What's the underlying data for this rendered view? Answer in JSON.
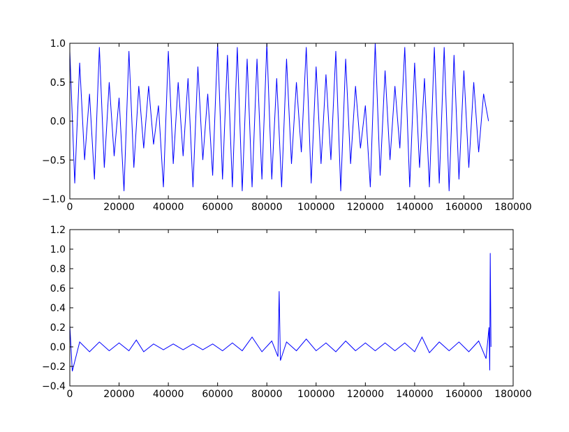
{
  "chart_data": [
    {
      "type": "line",
      "xlim": [
        0,
        180000
      ],
      "xticks": [
        0,
        20000,
        40000,
        60000,
        80000,
        100000,
        120000,
        140000,
        160000,
        180000
      ],
      "ylim": [
        -1,
        1
      ],
      "yticks": [
        {
          "value": -1,
          "label": "−1.0"
        },
        {
          "value": -0.5,
          "label": "−0.5"
        },
        {
          "value": 0,
          "label": "0.0"
        },
        0.5,
        {
          "value": 1,
          "label": "1.0"
        }
      ],
      "x": [
        0,
        2000,
        4000,
        6000,
        8000,
        10000,
        12000,
        14000,
        16000,
        18000,
        20000,
        22000,
        24000,
        26000,
        28000,
        30000,
        32000,
        34000,
        36000,
        38000,
        40000,
        42000,
        44000,
        46000,
        48000,
        50000,
        52000,
        54000,
        56000,
        58000,
        60000,
        62000,
        64000,
        66000,
        68000,
        70000,
        72000,
        74000,
        76000,
        78000,
        80000,
        82000,
        84000,
        86000,
        88000,
        90000,
        92000,
        94000,
        96000,
        98000,
        100000,
        102000,
        104000,
        106000,
        108000,
        110000,
        112000,
        114000,
        116000,
        118000,
        120000,
        122000,
        124000,
        126000,
        128000,
        130000,
        132000,
        134000,
        136000,
        138000,
        140000,
        142000,
        144000,
        146000,
        148000,
        150000,
        152000,
        154000,
        156000,
        158000,
        160000,
        162000,
        164000,
        166000,
        168000,
        170000
      ],
      "series": [
        {
          "color": "#0000ff",
          "values": [
            0.9,
            -0.8,
            0.75,
            -0.5,
            0.35,
            -0.75,
            0.95,
            -0.6,
            0.5,
            -0.45,
            0.3,
            -0.9,
            0.9,
            -0.6,
            0.45,
            -0.35,
            0.45,
            -0.3,
            0.2,
            -0.85,
            0.9,
            -0.55,
            0.5,
            -0.45,
            0.55,
            -0.85,
            0.7,
            -0.5,
            0.35,
            -0.7,
            1.0,
            -0.75,
            0.85,
            -0.85,
            0.95,
            -0.9,
            0.8,
            -0.85,
            0.8,
            -0.75,
            1.0,
            -0.75,
            0.55,
            -0.85,
            0.8,
            -0.55,
            0.5,
            -0.4,
            0.95,
            -0.8,
            0.7,
            -0.55,
            0.6,
            -0.5,
            0.9,
            -0.9,
            0.8,
            -0.55,
            0.45,
            -0.35,
            0.2,
            -0.85,
            1.0,
            -0.7,
            0.65,
            -0.5,
            0.45,
            -0.35,
            0.95,
            -0.85,
            0.75,
            -0.6,
            0.55,
            -0.85,
            0.95,
            -0.8,
            0.95,
            -0.9,
            0.85,
            -0.75,
            0.65,
            -0.6,
            0.5,
            -0.4,
            0.35,
            0.0
          ]
        }
      ]
    },
    {
      "type": "line",
      "xlim": [
        0,
        180000
      ],
      "xticks": [
        0,
        20000,
        40000,
        60000,
        80000,
        100000,
        120000,
        140000,
        160000,
        180000
      ],
      "ylim": [
        -0.4,
        1.2
      ],
      "yticks": [
        {
          "value": -0.4,
          "label": "−0.4"
        },
        {
          "value": -0.2,
          "label": "−0.2"
        },
        {
          "value": 0,
          "label": "0.0"
        },
        0.2,
        0.4,
        0.6,
        0.8,
        {
          "value": 1,
          "label": "1.0"
        },
        1.2
      ],
      "x": [
        0,
        1000,
        4000,
        8000,
        12000,
        16000,
        20000,
        24000,
        27000,
        30000,
        34000,
        38000,
        42000,
        46000,
        50000,
        54000,
        58000,
        62000,
        66000,
        70000,
        74000,
        78000,
        82000,
        84500,
        85000,
        85500,
        88000,
        92000,
        96000,
        100000,
        104000,
        108000,
        112000,
        116000,
        120000,
        124000,
        128000,
        132000,
        136000,
        140000,
        143000,
        146000,
        150000,
        154000,
        158000,
        162000,
        166000,
        169000,
        170200,
        170500,
        170700,
        171000
      ],
      "series": [
        {
          "color": "#0000ff",
          "values": [
            0.22,
            -0.25,
            0.05,
            -0.05,
            0.05,
            -0.04,
            0.04,
            -0.04,
            0.07,
            -0.05,
            0.03,
            -0.03,
            0.03,
            -0.03,
            0.03,
            -0.03,
            0.03,
            -0.04,
            0.04,
            -0.04,
            0.1,
            -0.05,
            0.06,
            -0.1,
            0.57,
            -0.14,
            0.05,
            -0.04,
            0.08,
            -0.04,
            0.04,
            -0.05,
            0.06,
            -0.04,
            0.04,
            -0.04,
            0.04,
            -0.04,
            0.04,
            -0.05,
            0.1,
            -0.06,
            0.05,
            -0.04,
            0.05,
            -0.05,
            0.06,
            -0.12,
            0.2,
            -0.24,
            0.96,
            0.0
          ]
        }
      ]
    }
  ]
}
